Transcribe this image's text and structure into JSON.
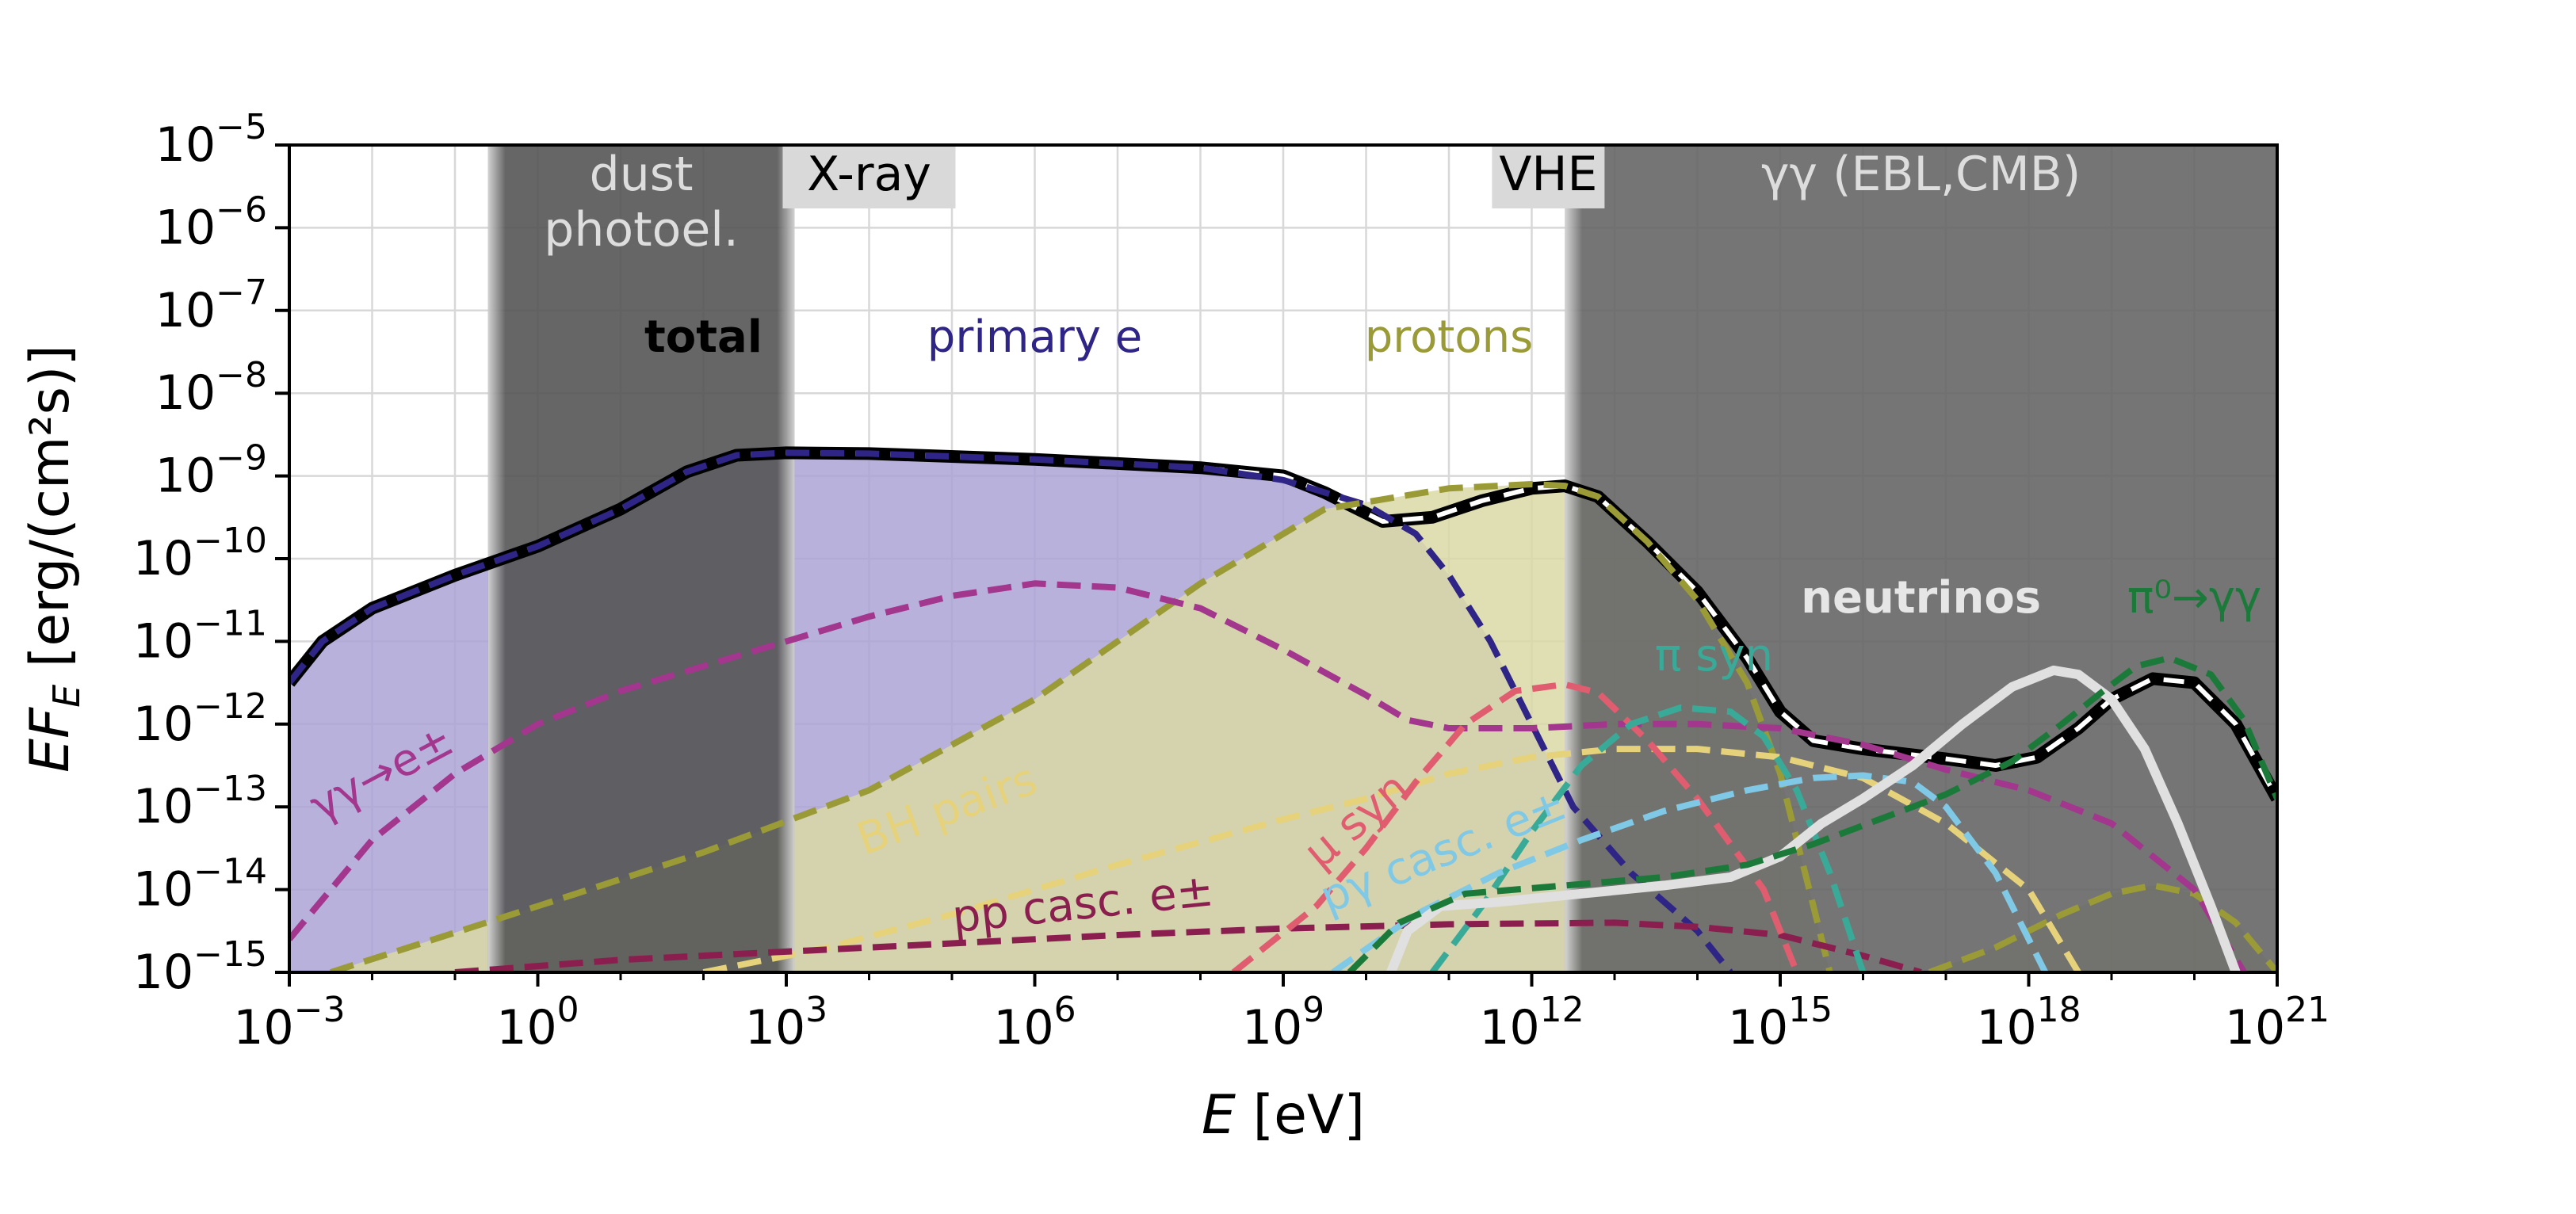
{
  "chart_data": {
    "type": "line",
    "xlabel": {
      "italic": "E",
      "rest": " [eV]"
    },
    "ylabel": {
      "italic": "EF",
      "sub": "E",
      "rest": " [erg/(cm²s)]"
    },
    "x_scale": "log",
    "y_scale": "log",
    "xlim_exp": [
      -3,
      21
    ],
    "ylim_exp": [
      -15,
      -5
    ],
    "grid": true,
    "x_ticks": [
      {
        "base": "10",
        "exp": "−3",
        "value_exp": -3
      },
      {
        "base": "10",
        "exp": "0",
        "value_exp": 0
      },
      {
        "base": "10",
        "exp": "3",
        "value_exp": 3
      },
      {
        "base": "10",
        "exp": "6",
        "value_exp": 6
      },
      {
        "base": "10",
        "exp": "9",
        "value_exp": 9
      },
      {
        "base": "10",
        "exp": "12",
        "value_exp": 12
      },
      {
        "base": "10",
        "exp": "15",
        "value_exp": 15
      },
      {
        "base": "10",
        "exp": "18",
        "value_exp": 18
      },
      {
        "base": "10",
        "exp": "21",
        "value_exp": 21
      }
    ],
    "y_ticks": [
      {
        "base": "10",
        "exp": "−5",
        "value_exp": -5
      },
      {
        "base": "10",
        "exp": "−6",
        "value_exp": -6
      },
      {
        "base": "10",
        "exp": "−7",
        "value_exp": -7
      },
      {
        "base": "10",
        "exp": "−8",
        "value_exp": -8
      },
      {
        "base": "10",
        "exp": "−9",
        "value_exp": -9
      },
      {
        "base": "10",
        "exp": "−10",
        "value_exp": -10
      },
      {
        "base": "10",
        "exp": "−11",
        "value_exp": -11
      },
      {
        "base": "10",
        "exp": "−12",
        "value_exp": -12
      },
      {
        "base": "10",
        "exp": "−13",
        "value_exp": -13
      },
      {
        "base": "10",
        "exp": "−14",
        "value_exp": -14
      },
      {
        "base": "10",
        "exp": "−15",
        "value_exp": -15
      }
    ],
    "shaded_bands": [
      {
        "label": "dust\nphotoel.",
        "x_from_exp": -0.6,
        "x_to_exp": 3.1,
        "color": "#555555"
      },
      {
        "label": "γγ (EBL,CMB)",
        "x_from_exp": 12.4,
        "x_to_exp": 21,
        "color": "#666666"
      }
    ],
    "band_tags": [
      {
        "label": "X-ray",
        "x_exp": 4.0,
        "y_exp": -5.35
      },
      {
        "label": "VHE",
        "x_exp": 12.2,
        "y_exp": -5.35
      }
    ],
    "series": [
      {
        "name": "total",
        "color": "#000000",
        "style": "solid",
        "width": 14,
        "points": [
          [
            -3,
            -11.5
          ],
          [
            -2.6,
            -11.0
          ],
          [
            -2,
            -10.6
          ],
          [
            -1,
            -10.2
          ],
          [
            0,
            -9.85
          ],
          [
            1,
            -9.4
          ],
          [
            1.8,
            -8.95
          ],
          [
            2.4,
            -8.75
          ],
          [
            3,
            -8.72
          ],
          [
            4,
            -8.73
          ],
          [
            6,
            -8.8
          ],
          [
            8,
            -8.9
          ],
          [
            9,
            -9.0
          ],
          [
            9.5,
            -9.2
          ],
          [
            10.2,
            -9.55
          ],
          [
            10.8,
            -9.5
          ],
          [
            11.4,
            -9.3
          ],
          [
            12,
            -9.15
          ],
          [
            12.4,
            -9.12
          ],
          [
            12.8,
            -9.25
          ],
          [
            13.4,
            -9.8
          ],
          [
            14,
            -10.4
          ],
          [
            14.6,
            -11.2
          ],
          [
            15.0,
            -11.85
          ],
          [
            15.4,
            -12.2
          ],
          [
            16,
            -12.3
          ],
          [
            17,
            -12.42
          ],
          [
            17.6,
            -12.5
          ],
          [
            18.1,
            -12.4
          ],
          [
            18.6,
            -12.05
          ],
          [
            19,
            -11.7
          ],
          [
            19.5,
            -11.45
          ],
          [
            20,
            -11.5
          ],
          [
            20.5,
            -12.0
          ],
          [
            21,
            -12.9
          ]
        ]
      },
      {
        "name": "primary e",
        "color": "#2f2587",
        "style": "dashed",
        "width": 8,
        "fill": "#aba3d6",
        "points": [
          [
            -3,
            -11.5
          ],
          [
            -2.6,
            -11.0
          ],
          [
            -2,
            -10.6
          ],
          [
            -1,
            -10.2
          ],
          [
            0,
            -9.85
          ],
          [
            1,
            -9.4
          ],
          [
            1.8,
            -8.95
          ],
          [
            2.4,
            -8.75
          ],
          [
            3,
            -8.72
          ],
          [
            4,
            -8.73
          ],
          [
            6,
            -8.8
          ],
          [
            8,
            -8.9
          ],
          [
            9,
            -9.05
          ],
          [
            10,
            -9.35
          ],
          [
            10.6,
            -9.7
          ],
          [
            11,
            -10.2
          ],
          [
            11.5,
            -11.0
          ],
          [
            12,
            -12.0
          ],
          [
            12.5,
            -13.0
          ],
          [
            13.2,
            -13.8
          ],
          [
            14,
            -14.5
          ],
          [
            14.4,
            -15.0
          ]
        ]
      },
      {
        "name": "protons",
        "color": "#9a9a36",
        "style": "dashed",
        "width": 8,
        "fill": "#d9d9a6",
        "points": [
          [
            -2.5,
            -15.0
          ],
          [
            0,
            -14.2
          ],
          [
            2,
            -13.55
          ],
          [
            4,
            -12.8
          ],
          [
            6,
            -11.7
          ],
          [
            8,
            -10.3
          ],
          [
            9.5,
            -9.4
          ],
          [
            11,
            -9.15
          ],
          [
            12,
            -9.1
          ],
          [
            12.4,
            -9.12
          ],
          [
            12.8,
            -9.25
          ],
          [
            13.4,
            -9.8
          ],
          [
            14,
            -10.5
          ],
          [
            14.6,
            -11.5
          ],
          [
            15.0,
            -12.6
          ],
          [
            15.3,
            -13.8
          ],
          [
            15.6,
            -15.0
          ]
        ]
      },
      {
        "name": "protons high",
        "color": "#9a9a36",
        "style": "dashed",
        "width": 8,
        "fill": "#d9d9a6",
        "points": [
          [
            16.8,
            -15.0
          ],
          [
            17.6,
            -14.7
          ],
          [
            18.4,
            -14.3
          ],
          [
            19,
            -14.05
          ],
          [
            19.5,
            -13.95
          ],
          [
            20,
            -14.05
          ],
          [
            20.5,
            -14.4
          ],
          [
            21,
            -15.0
          ]
        ]
      },
      {
        "name": "γγ→e±",
        "color": "#a3368d",
        "style": "dashed",
        "width": 8,
        "points": [
          [
            -3,
            -14.6
          ],
          [
            -2,
            -13.4
          ],
          [
            -1,
            -12.6
          ],
          [
            0,
            -12.0
          ],
          [
            1,
            -11.6
          ],
          [
            2,
            -11.3
          ],
          [
            3,
            -11.0
          ],
          [
            4,
            -10.7
          ],
          [
            5,
            -10.45
          ],
          [
            6,
            -10.3
          ],
          [
            7,
            -10.35
          ],
          [
            8,
            -10.6
          ],
          [
            9,
            -11.1
          ],
          [
            10,
            -11.65
          ],
          [
            10.5,
            -11.95
          ],
          [
            11,
            -12.05
          ],
          [
            12,
            -12.05
          ],
          [
            13,
            -12.0
          ],
          [
            14,
            -12.0
          ],
          [
            15,
            -12.05
          ],
          [
            16,
            -12.25
          ],
          [
            17,
            -12.55
          ],
          [
            18,
            -12.8
          ],
          [
            19,
            -13.2
          ],
          [
            20,
            -14.0
          ],
          [
            20.6,
            -15.0
          ]
        ]
      },
      {
        "name": "BH pairs",
        "color": "#e6d27a",
        "style": "dashed",
        "width": 8,
        "points": [
          [
            2,
            -15.0
          ],
          [
            3.5,
            -14.7
          ],
          [
            5,
            -14.3
          ],
          [
            7,
            -13.7
          ],
          [
            9,
            -13.15
          ],
          [
            10,
            -12.9
          ],
          [
            11,
            -12.6
          ],
          [
            12,
            -12.4
          ],
          [
            13,
            -12.3
          ],
          [
            14,
            -12.3
          ],
          [
            15,
            -12.4
          ],
          [
            16,
            -12.65
          ],
          [
            17,
            -13.2
          ],
          [
            18,
            -14.0
          ],
          [
            18.6,
            -15.0
          ]
        ]
      },
      {
        "name": "pp casc. e±",
        "color": "#8a1f4f",
        "style": "dashed",
        "width": 8,
        "points": [
          [
            -1,
            -15.0
          ],
          [
            1,
            -14.85
          ],
          [
            3,
            -14.75
          ],
          [
            5,
            -14.65
          ],
          [
            7,
            -14.55
          ],
          [
            9,
            -14.47
          ],
          [
            11,
            -14.42
          ],
          [
            13,
            -14.4
          ],
          [
            14,
            -14.45
          ],
          [
            15,
            -14.55
          ],
          [
            16,
            -14.8
          ],
          [
            16.7,
            -15.0
          ]
        ]
      },
      {
        "name": "μ syn",
        "color": "#e05d70",
        "style": "dashed",
        "width": 8,
        "points": [
          [
            8.4,
            -15.0
          ],
          [
            9.4,
            -14.2
          ],
          [
            10,
            -13.5
          ],
          [
            10.6,
            -12.7
          ],
          [
            11.2,
            -12.0
          ],
          [
            11.8,
            -11.6
          ],
          [
            12.4,
            -11.52
          ],
          [
            12.8,
            -11.62
          ],
          [
            13.4,
            -12.2
          ],
          [
            14,
            -12.9
          ],
          [
            14.8,
            -14.0
          ],
          [
            15.2,
            -15.0
          ]
        ]
      },
      {
        "name": "π syn",
        "color": "#3aaa98",
        "style": "dashed",
        "width": 8,
        "points": [
          [
            10.8,
            -15.0
          ],
          [
            11.4,
            -14.2
          ],
          [
            12,
            -13.3
          ],
          [
            12.6,
            -12.5
          ],
          [
            13.2,
            -12.0
          ],
          [
            13.8,
            -11.8
          ],
          [
            14.4,
            -11.85
          ],
          [
            14.8,
            -12.15
          ],
          [
            15.2,
            -12.8
          ],
          [
            15.6,
            -13.8
          ],
          [
            16.0,
            -15.0
          ]
        ]
      },
      {
        "name": "pγ casc. e±",
        "color": "#7fc8e6",
        "style": "dashed",
        "width": 8,
        "points": [
          [
            9.6,
            -15.0
          ],
          [
            10.6,
            -14.3
          ],
          [
            11.6,
            -13.8
          ],
          [
            12.6,
            -13.4
          ],
          [
            13.6,
            -13.05
          ],
          [
            14.6,
            -12.8
          ],
          [
            15.4,
            -12.65
          ],
          [
            16,
            -12.62
          ],
          [
            16.6,
            -12.7
          ],
          [
            17,
            -13.0
          ],
          [
            17.6,
            -13.8
          ],
          [
            18.2,
            -15.0
          ]
        ]
      },
      {
        "name": "neutrinos",
        "color": "#e0e0e0",
        "style": "solid",
        "width": 12,
        "points": [
          [
            10.3,
            -15.0
          ],
          [
            10.5,
            -14.5
          ],
          [
            10.9,
            -14.2
          ],
          [
            11.6,
            -14.15
          ],
          [
            12.6,
            -14.05
          ],
          [
            13.6,
            -13.95
          ],
          [
            14.4,
            -13.85
          ],
          [
            15.0,
            -13.6
          ],
          [
            15.5,
            -13.2
          ],
          [
            16,
            -12.9
          ],
          [
            16.6,
            -12.5
          ],
          [
            17.2,
            -12.0
          ],
          [
            17.8,
            -11.55
          ],
          [
            18.3,
            -11.35
          ],
          [
            18.6,
            -11.4
          ],
          [
            19,
            -11.7
          ],
          [
            19.4,
            -12.3
          ],
          [
            19.8,
            -13.2
          ],
          [
            20.2,
            -14.2
          ],
          [
            20.5,
            -15.0
          ]
        ]
      },
      {
        "name": "π⁰→γγ",
        "color": "#1b7a3a",
        "style": "dashed",
        "width": 8,
        "points": [
          [
            9.8,
            -15.0
          ],
          [
            10.4,
            -14.4
          ],
          [
            11.2,
            -14.05
          ],
          [
            12.4,
            -13.95
          ],
          [
            13.6,
            -13.85
          ],
          [
            14.6,
            -13.7
          ],
          [
            15.4,
            -13.45
          ],
          [
            16.2,
            -13.15
          ],
          [
            17,
            -12.85
          ],
          [
            17.8,
            -12.45
          ],
          [
            18.4,
            -12.0
          ],
          [
            18.9,
            -11.6
          ],
          [
            19.3,
            -11.3
          ],
          [
            19.7,
            -11.2
          ],
          [
            20.2,
            -11.4
          ],
          [
            20.6,
            -11.95
          ],
          [
            21,
            -12.9
          ]
        ]
      }
    ],
    "annotations": [
      {
        "text": "total",
        "x_exp": 2.0,
        "y_exp": -7.5,
        "color": "#000000",
        "bold": true,
        "angle": 0
      },
      {
        "text": "primary e",
        "x_exp": 6.0,
        "y_exp": -7.5,
        "color": "#2f2587",
        "bold": false,
        "angle": 0
      },
      {
        "text": "protons",
        "x_exp": 11.0,
        "y_exp": -7.5,
        "color": "#9a9a36",
        "bold": false,
        "angle": 0
      },
      {
        "text": "neutrinos",
        "x_exp": 16.7,
        "y_exp": -10.65,
        "color": "#e6e6e6",
        "bold": true,
        "angle": 0
      },
      {
        "text": "π⁰→γγ",
        "x_exp": 20.0,
        "y_exp": -10.65,
        "color": "#1b7a3a",
        "bold": false,
        "angle": 0
      },
      {
        "text": "π syn",
        "x_exp": 14.2,
        "y_exp": -11.35,
        "color": "#3aaa98",
        "bold": false,
        "angle": 0
      },
      {
        "text": "γγ→e±",
        "x_exp": -1.8,
        "y_exp": -12.75,
        "color": "#a3368d",
        "bold": false,
        "angle": -28
      },
      {
        "text": "BH pairs",
        "x_exp": 5.0,
        "y_exp": -13.2,
        "color": "#e6d27a",
        "bold": false,
        "angle": -20
      },
      {
        "text": "pp casc. e±",
        "x_exp": 6.6,
        "y_exp": -14.35,
        "color": "#8a1f4f",
        "bold": false,
        "angle": -6
      },
      {
        "text": "μ syn",
        "x_exp": 10.0,
        "y_exp": -13.3,
        "color": "#e05d70",
        "bold": false,
        "angle": -40
      },
      {
        "text": "pγ casc. e±",
        "x_exp": 11.0,
        "y_exp": -13.7,
        "color": "#7fc8e6",
        "bold": false,
        "angle": -22
      }
    ]
  }
}
